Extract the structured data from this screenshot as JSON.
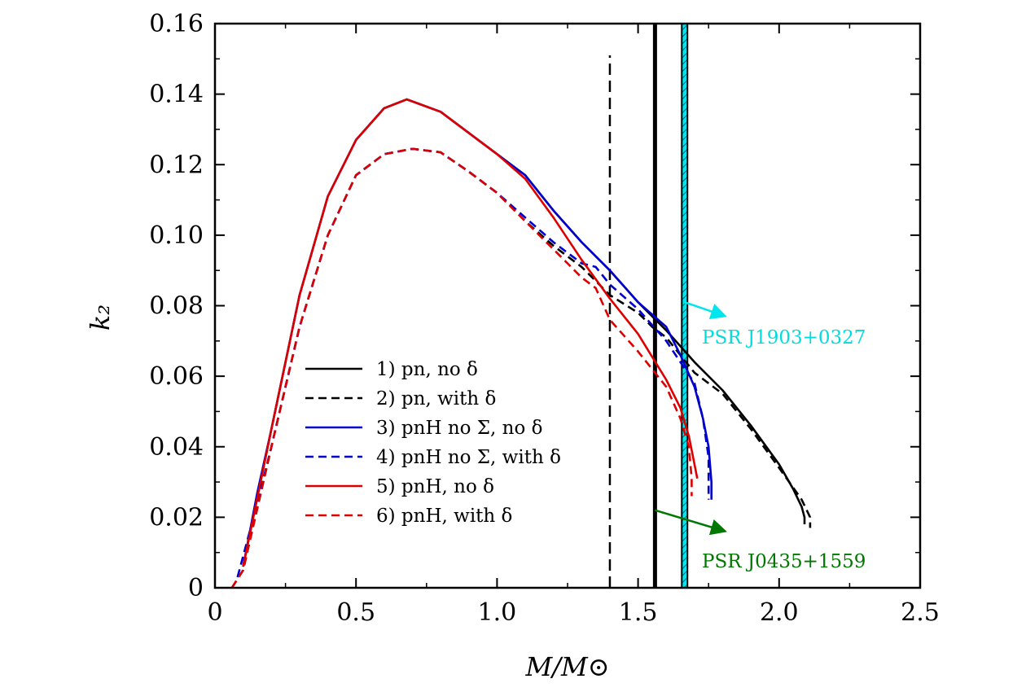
{
  "chart_data": {
    "type": "line",
    "xlabel": "M/M⊙",
    "ylabel": "k₂",
    "xlim": [
      0,
      2.5
    ],
    "ylim": [
      0,
      0.16
    ],
    "x_ticks": [
      "0",
      "0.5",
      "1.0",
      "1.5",
      "2.0",
      "2.5"
    ],
    "y_ticks": [
      "0",
      "0.02",
      "0.04",
      "0.06",
      "0.08",
      "0.10",
      "0.12",
      "0.14",
      "0.16"
    ],
    "legend_position": "lower-left",
    "series": [
      {
        "name": "1) pn, no δ",
        "color": "#000000",
        "style": "solid",
        "points": [
          [
            0.1,
            0.006
          ],
          [
            0.2,
            0.045
          ],
          [
            0.3,
            0.083
          ],
          [
            0.4,
            0.111
          ],
          [
            0.5,
            0.127
          ],
          [
            0.6,
            0.136
          ],
          [
            0.68,
            0.1385
          ],
          [
            0.8,
            0.135
          ],
          [
            1.0,
            0.123
          ],
          [
            1.1,
            0.117
          ],
          [
            1.2,
            0.107
          ],
          [
            1.3,
            0.098
          ],
          [
            1.4,
            0.09
          ],
          [
            1.5,
            0.081
          ],
          [
            1.6,
            0.073
          ],
          [
            1.7,
            0.064
          ],
          [
            1.8,
            0.056
          ],
          [
            1.9,
            0.046
          ],
          [
            2.0,
            0.035
          ],
          [
            2.05,
            0.028
          ],
          [
            2.08,
            0.023
          ],
          [
            2.09,
            0.02
          ],
          [
            2.09,
            0.018
          ]
        ]
      },
      {
        "name": "2) pn, with δ",
        "color": "#000000",
        "style": "dashed",
        "points": [
          [
            0.06,
            0.0
          ],
          [
            0.1,
            0.005
          ],
          [
            0.2,
            0.04
          ],
          [
            0.3,
            0.074
          ],
          [
            0.4,
            0.1
          ],
          [
            0.5,
            0.117
          ],
          [
            0.6,
            0.123
          ],
          [
            0.7,
            0.1245
          ],
          [
            0.8,
            0.1235
          ],
          [
            0.9,
            0.118
          ],
          [
            1.0,
            0.112
          ],
          [
            1.1,
            0.104
          ],
          [
            1.2,
            0.097
          ],
          [
            1.3,
            0.091
          ],
          [
            1.4,
            0.083
          ],
          [
            1.5,
            0.078
          ],
          [
            1.55,
            0.074
          ],
          [
            1.6,
            0.071
          ],
          [
            1.7,
            0.061
          ],
          [
            1.8,
            0.055
          ],
          [
            1.9,
            0.045
          ],
          [
            2.0,
            0.034
          ],
          [
            2.08,
            0.025
          ],
          [
            2.11,
            0.02
          ],
          [
            2.11,
            0.017
          ]
        ]
      },
      {
        "name": "3) pnH no Σ, no δ",
        "color": "#0000cc",
        "style": "solid",
        "points": [
          [
            0.1,
            0.006
          ],
          [
            0.15,
            0.027
          ],
          [
            0.2,
            0.045
          ],
          [
            0.3,
            0.083
          ],
          [
            0.4,
            0.111
          ],
          [
            0.5,
            0.127
          ],
          [
            0.6,
            0.136
          ],
          [
            0.68,
            0.1385
          ],
          [
            0.8,
            0.135
          ],
          [
            1.0,
            0.123
          ],
          [
            1.1,
            0.117
          ],
          [
            1.2,
            0.107
          ],
          [
            1.3,
            0.098
          ],
          [
            1.4,
            0.09
          ],
          [
            1.5,
            0.081
          ],
          [
            1.6,
            0.074
          ],
          [
            1.65,
            0.066
          ],
          [
            1.7,
            0.057
          ],
          [
            1.73,
            0.048
          ],
          [
            1.75,
            0.04
          ],
          [
            1.76,
            0.03
          ],
          [
            1.76,
            0.025
          ]
        ]
      },
      {
        "name": "4) pnH no Σ, with δ",
        "color": "#0000cc",
        "style": "dashed",
        "points": [
          [
            0.08,
            0.003
          ],
          [
            0.15,
            0.024
          ],
          [
            0.2,
            0.04
          ],
          [
            0.3,
            0.074
          ],
          [
            0.4,
            0.1
          ],
          [
            0.5,
            0.117
          ],
          [
            0.6,
            0.123
          ],
          [
            0.7,
            0.1245
          ],
          [
            0.8,
            0.1235
          ],
          [
            0.9,
            0.118
          ],
          [
            1.0,
            0.112
          ],
          [
            1.1,
            0.105
          ],
          [
            1.2,
            0.098
          ],
          [
            1.3,
            0.092
          ],
          [
            1.35,
            0.091
          ],
          [
            1.4,
            0.086
          ],
          [
            1.5,
            0.079
          ],
          [
            1.6,
            0.07
          ],
          [
            1.65,
            0.064
          ],
          [
            1.7,
            0.058
          ],
          [
            1.73,
            0.048
          ],
          [
            1.75,
            0.037
          ],
          [
            1.75,
            0.025
          ]
        ]
      },
      {
        "name": "5) pnH, no δ",
        "color": "#dd0000",
        "style": "solid",
        "points": [
          [
            0.1,
            0.006
          ],
          [
            0.2,
            0.045
          ],
          [
            0.3,
            0.083
          ],
          [
            0.4,
            0.111
          ],
          [
            0.5,
            0.127
          ],
          [
            0.6,
            0.136
          ],
          [
            0.68,
            0.1385
          ],
          [
            0.8,
            0.135
          ],
          [
            1.0,
            0.123
          ],
          [
            1.1,
            0.116
          ],
          [
            1.2,
            0.105
          ],
          [
            1.3,
            0.093
          ],
          [
            1.4,
            0.082
          ],
          [
            1.5,
            0.072
          ],
          [
            1.6,
            0.059
          ],
          [
            1.65,
            0.051
          ],
          [
            1.68,
            0.043
          ],
          [
            1.7,
            0.035
          ],
          [
            1.71,
            0.031
          ]
        ]
      },
      {
        "name": "6) pnH, with δ",
        "color": "#dd0000",
        "style": "dashed",
        "points": [
          [
            0.06,
            0.0
          ],
          [
            0.1,
            0.005
          ],
          [
            0.2,
            0.04
          ],
          [
            0.3,
            0.074
          ],
          [
            0.4,
            0.1
          ],
          [
            0.5,
            0.117
          ],
          [
            0.6,
            0.123
          ],
          [
            0.7,
            0.1245
          ],
          [
            0.8,
            0.1235
          ],
          [
            0.9,
            0.118
          ],
          [
            1.0,
            0.112
          ],
          [
            1.1,
            0.104
          ],
          [
            1.2,
            0.096
          ],
          [
            1.25,
            0.092
          ],
          [
            1.3,
            0.088
          ],
          [
            1.35,
            0.085
          ],
          [
            1.4,
            0.076
          ],
          [
            1.5,
            0.067
          ],
          [
            1.6,
            0.057
          ],
          [
            1.65,
            0.048
          ],
          [
            1.68,
            0.04
          ],
          [
            1.69,
            0.031
          ],
          [
            1.69,
            0.026
          ]
        ]
      }
    ],
    "reference_lines": [
      {
        "type": "dashed-vertical",
        "x": 1.4,
        "y_top": 0.151
      },
      {
        "type": "solid-vertical",
        "x": 1.56
      }
    ],
    "band": {
      "x_from": 1.655,
      "x_to": 1.675,
      "color": "#00e5ee",
      "hatch": true
    },
    "annotations": [
      {
        "text": "PSR J1903+0327",
        "color": "#00dddd",
        "arrow_from": [
          1.665,
          0.081
        ],
        "arrow_to": [
          1.81,
          0.077
        ]
      },
      {
        "text": "PSR J0435+1559",
        "color": "#007700",
        "arrow_from": [
          1.56,
          0.022
        ],
        "arrow_to": [
          1.81,
          0.016
        ]
      }
    ]
  }
}
